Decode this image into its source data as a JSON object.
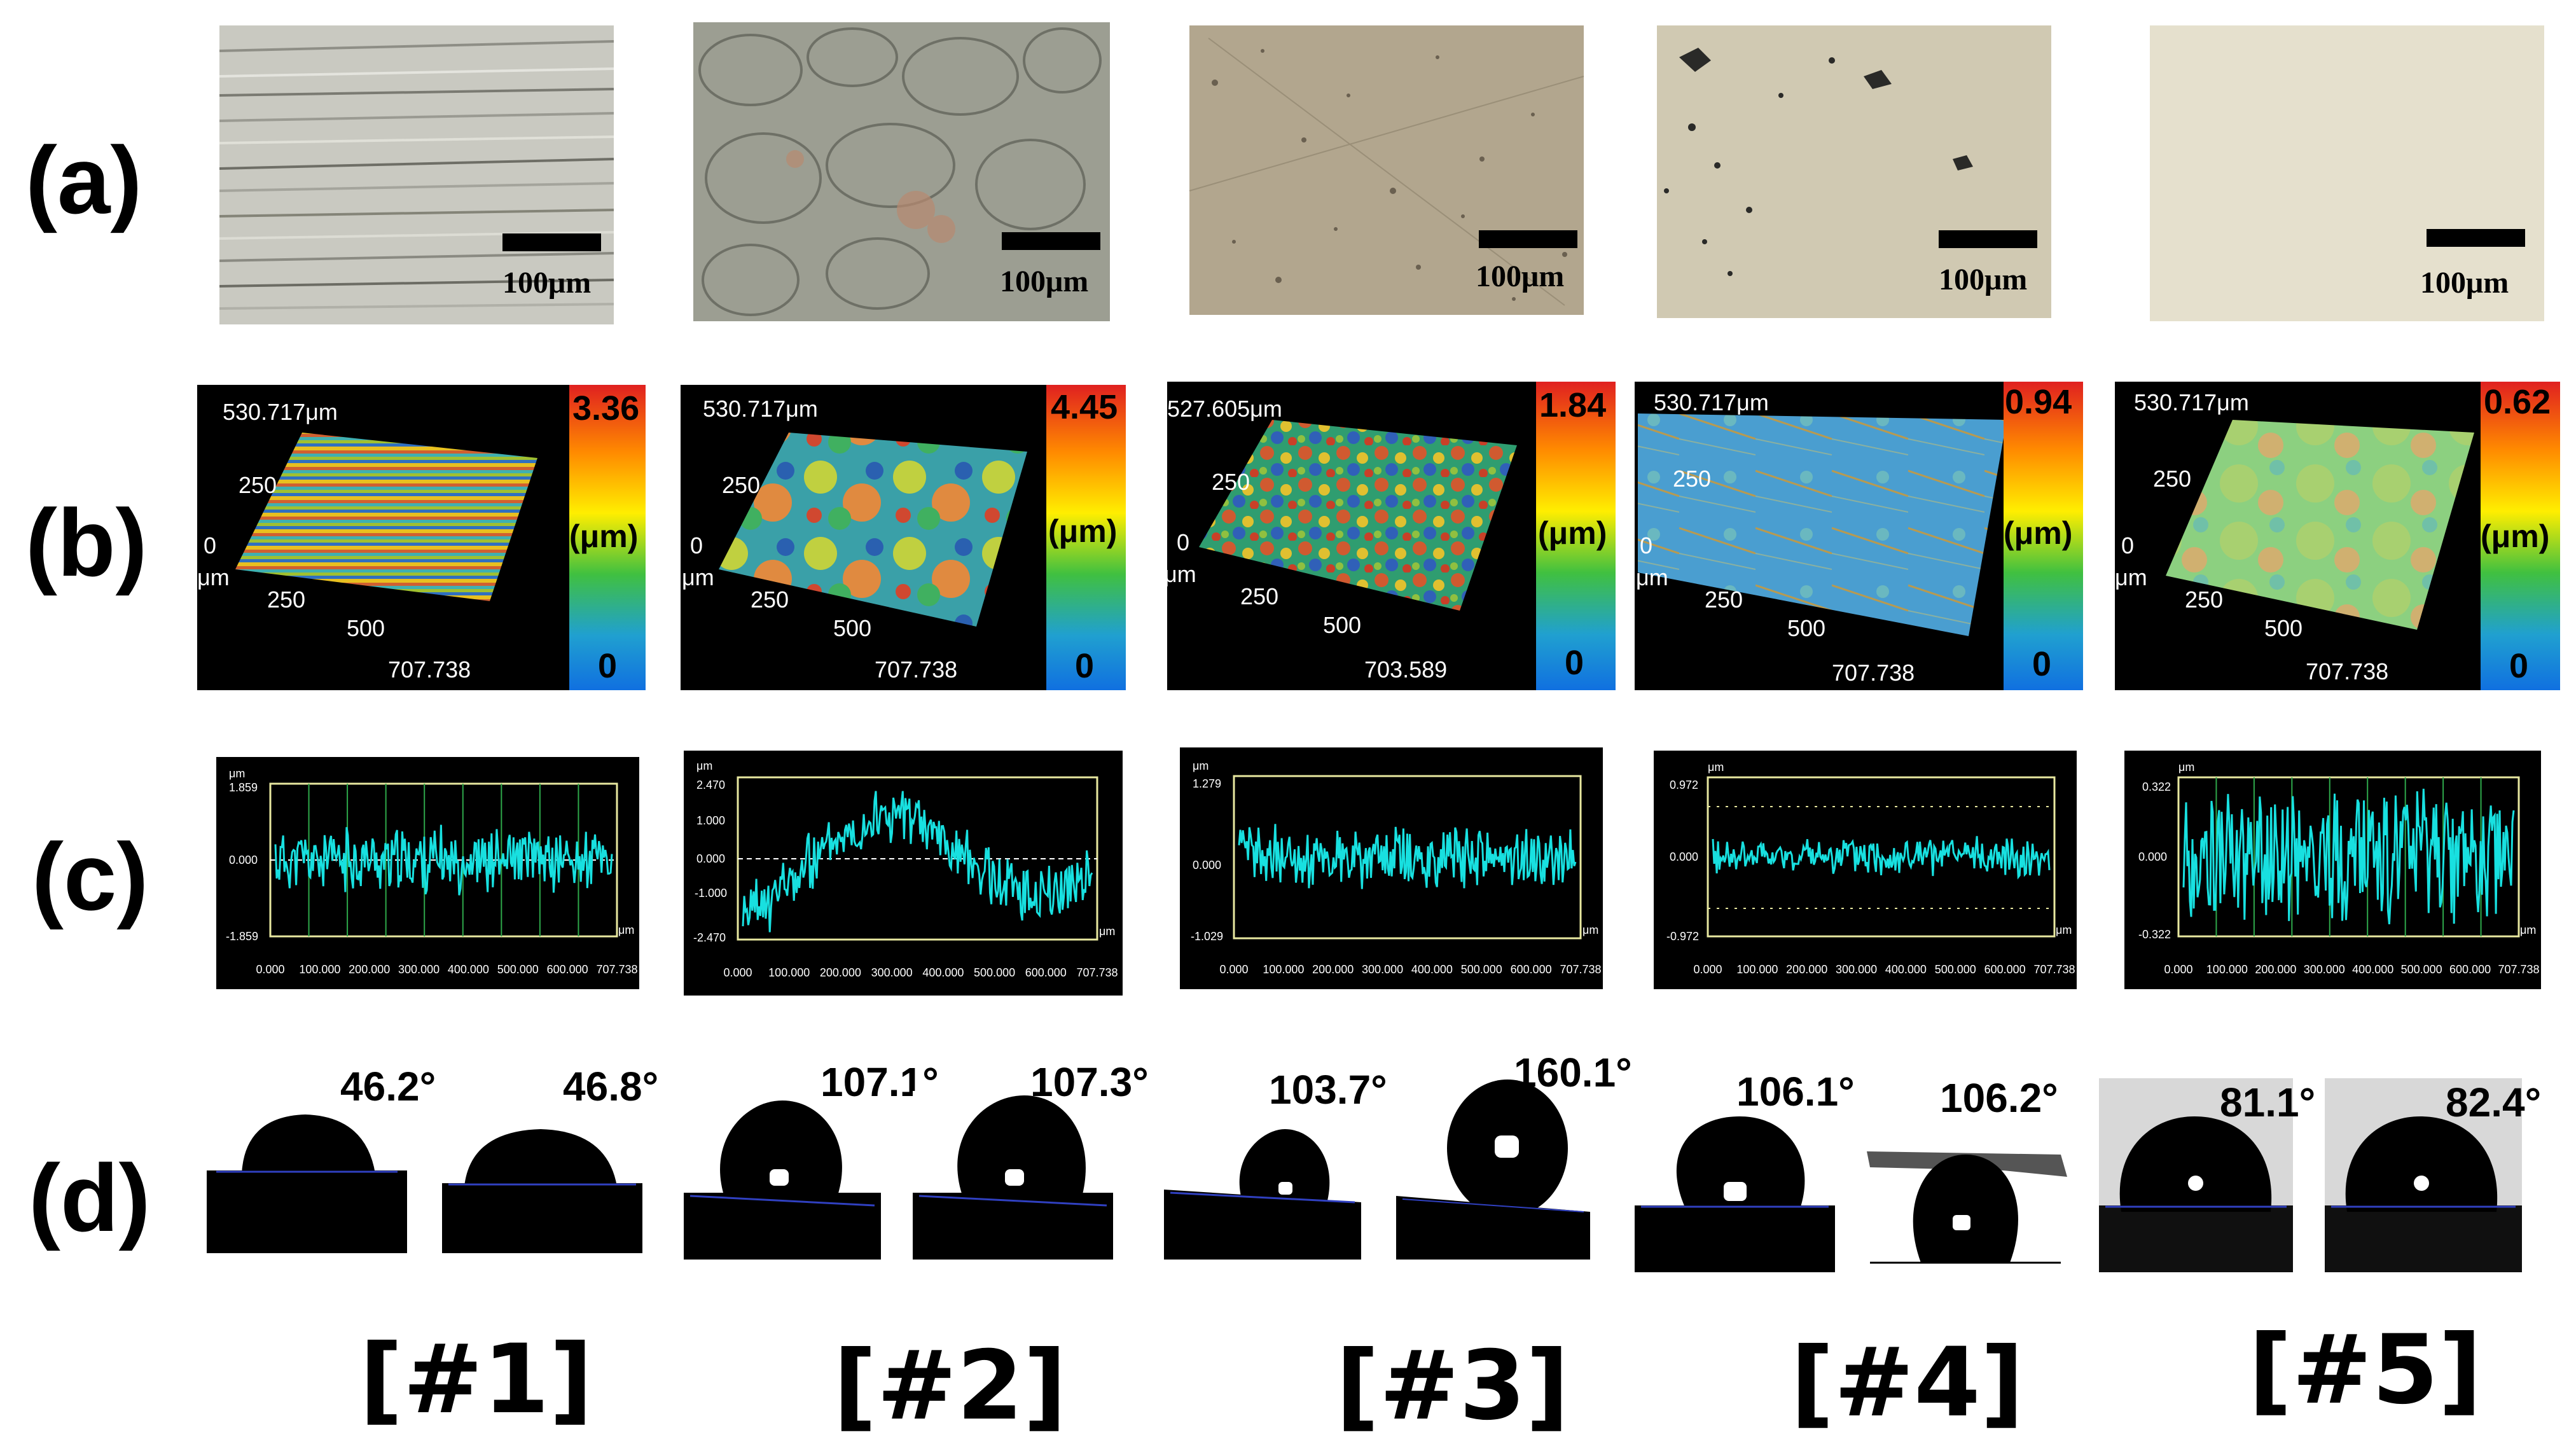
{
  "row_labels": [
    "(a)",
    "(b)",
    "(c)",
    "(d)"
  ],
  "colors": {
    "profile_line": "#18e0e0",
    "profile_box": "#e8e8a0",
    "profile_gridline": "#2ea84a",
    "contact_baseline": "#3040c0",
    "colorbar": [
      "#e02020",
      "#ff8a00",
      "#ffee00",
      "#40c040",
      "#1080e0"
    ]
  },
  "samples": [
    {
      "label": "[#1]",
      "micrograph": {
        "scale_bar": "100μm",
        "tone": "#c9c9c1",
        "texture": "horizontal-scratches"
      },
      "surface_3d": {
        "y_max": "530.717μm",
        "y_tick": "250",
        "origin": "0",
        "x_unit": "μm",
        "x_tick_1": "250",
        "x_tick_2": "500",
        "x_max": "707.738",
        "cb_max": "3.36",
        "cb_unit": "(μm)",
        "cb_min": "0",
        "pattern": "stripes"
      },
      "profile": {
        "y_top": "1.859",
        "y_mid": "0.000",
        "y_bottom": "-1.859",
        "y_unit": "μm",
        "x_ticks": [
          "0.000",
          "100.000",
          "200.000",
          "300.000",
          "400.000",
          "500.000",
          "600.000",
          "707.738"
        ],
        "x_unit": "μm",
        "amplitude": 0.35,
        "seed": 11,
        "drift": 0,
        "gridlines": true
      },
      "contact_angles": [
        "46.2°",
        "46.8°"
      ]
    },
    {
      "label": "[#2]",
      "micrograph": {
        "scale_bar": "100μm",
        "tone": "#9c9e92",
        "texture": "cells"
      },
      "surface_3d": {
        "y_max": "530.717μm",
        "y_tick": "250",
        "origin": "0",
        "x_unit": "μm",
        "x_tick_1": "250",
        "x_tick_2": "500",
        "x_max": "707.738",
        "cb_max": "4.45",
        "cb_unit": "(μm)",
        "cb_min": "0",
        "pattern": "blobs"
      },
      "profile": {
        "y_top": "2.470",
        "y_upper": "1.000",
        "y_mid": "0.000",
        "y_lower": "-1.000",
        "y_bottom": "-2.470",
        "y_unit": "μm",
        "x_ticks": [
          "0.000",
          "100.000",
          "200.000",
          "300.000",
          "400.000",
          "500.000",
          "600.000",
          "707.738"
        ],
        "x_unit": "μm",
        "amplitude": 0.3,
        "seed": 23,
        "drift": 1,
        "gridlines": false
      },
      "contact_angles": [
        "107.1°",
        "107.3°"
      ]
    },
    {
      "label": "[#3]",
      "micrograph": {
        "scale_bar": "100μm",
        "tone": "#b2a68e",
        "texture": "speckle"
      },
      "surface_3d": {
        "y_max": "527.605μm",
        "y_tick": "250",
        "origin": "0",
        "x_unit": "μm",
        "x_tick_1": "250",
        "x_tick_2": "500",
        "x_max": "703.589",
        "cb_max": "1.84",
        "cb_unit": "(μm)",
        "cb_min": "0",
        "pattern": "rough"
      },
      "profile": {
        "y_top": "1.279",
        "y_mid": "0.000",
        "y_bottom": "-1.029",
        "y_unit": "μm",
        "x_ticks": [
          "0.000",
          "100.000",
          "200.000",
          "300.000",
          "400.000",
          "500.000",
          "600.000",
          "707.738"
        ],
        "x_unit": "μm",
        "amplitude": 0.3,
        "seed": 37,
        "drift": 0,
        "gridlines": false
      },
      "contact_angles": [
        "103.7°",
        "160.1°"
      ]
    },
    {
      "label": "[#4]",
      "micrograph": {
        "scale_bar": "100μm",
        "tone": "#d0c9b2",
        "texture": "spots"
      },
      "surface_3d": {
        "y_max": "530.717μm",
        "y_tick": "250",
        "origin": "0",
        "x_unit": "μm",
        "x_tick_1": "250",
        "x_tick_2": "500",
        "x_max": "707.738",
        "cb_max": "0.94",
        "cb_unit": "(μm)",
        "cb_min": "0",
        "pattern": "smooth-blue"
      },
      "profile": {
        "y_top": "0.972",
        "y_mid": "0.000",
        "y_bottom": "-0.972",
        "y_unit": "μm",
        "x_ticks": [
          "0.000",
          "100.000",
          "200.000",
          "300.000",
          "400.000",
          "500.000",
          "600.000",
          "707.738"
        ],
        "x_unit": "μm",
        "amplitude": 0.15,
        "seed": 41,
        "drift": 0,
        "gridlines": false
      },
      "contact_angles": [
        "106.1°",
        "106.2°"
      ]
    },
    {
      "label": "[#5]",
      "micrograph": {
        "scale_bar": "100μm",
        "tone": "#e5e0cd",
        "texture": "plain"
      },
      "surface_3d": {
        "y_max": "530.717μm",
        "y_tick": "250",
        "origin": "0",
        "x_unit": "μm",
        "x_tick_1": "250",
        "x_tick_2": "500",
        "x_max": "707.738",
        "cb_max": "0.62",
        "cb_unit": "(μm)",
        "cb_min": "0",
        "pattern": "smooth-green"
      },
      "profile": {
        "y_top": "0.322",
        "y_mid": "0.000",
        "y_bottom": "-0.322",
        "y_unit": "μm",
        "x_ticks": [
          "0.000",
          "100.000",
          "200.000",
          "300.000",
          "400.000",
          "500.000",
          "600.000",
          "707.738"
        ],
        "x_unit": "μm",
        "amplitude": 0.75,
        "seed": 53,
        "drift": 0,
        "gridlines": true
      },
      "contact_angles": [
        "81.1°",
        "82.4°"
      ]
    }
  ]
}
